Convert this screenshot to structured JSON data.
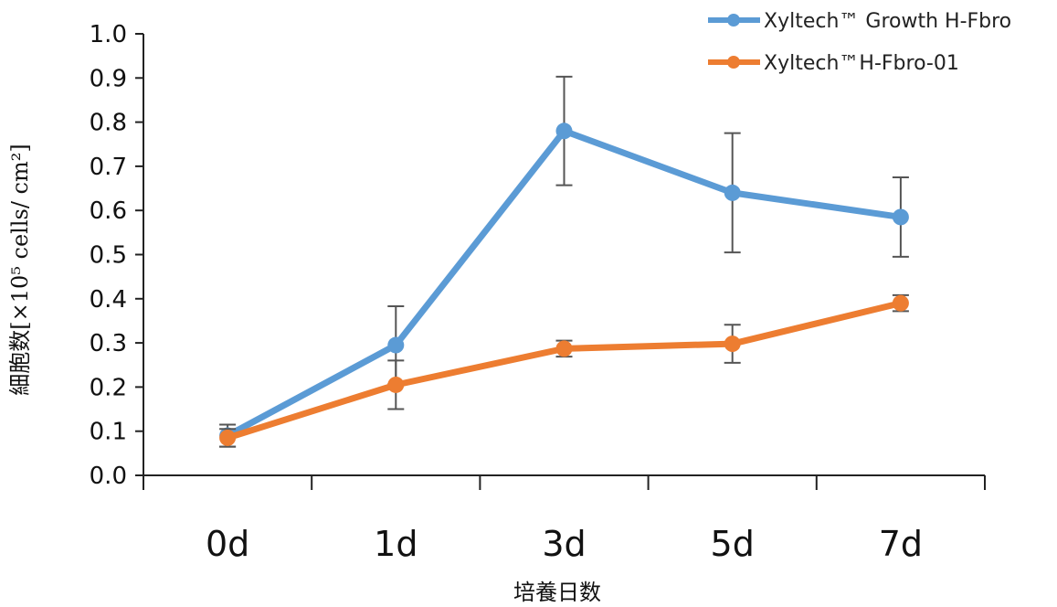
{
  "chart_data": {
    "type": "line",
    "categories": [
      "0d",
      "1d",
      "3d",
      "5d",
      "7d"
    ],
    "series": [
      {
        "name": "Xyltech™ Growth H-Fbro",
        "color": "#5b9bd5",
        "values": [
          0.09,
          0.295,
          0.78,
          0.64,
          0.585
        ],
        "errors": [
          0.025,
          0.088,
          0.123,
          0.135,
          0.09
        ]
      },
      {
        "name": "Xyltech™H-Fbro-01",
        "color": "#ed7d31",
        "values": [
          0.085,
          0.205,
          0.287,
          0.298,
          0.39
        ],
        "errors": [
          0.02,
          0.055,
          0.018,
          0.043,
          0.018
        ]
      }
    ],
    "ylim": [
      0.0,
      1.0
    ],
    "yticks": [
      "0.0",
      "0.1",
      "0.2",
      "0.3",
      "0.4",
      "0.5",
      "0.6",
      "0.7",
      "0.8",
      "0.9",
      "1.0"
    ],
    "xlabel": "培養日数",
    "ylabel": "細胞数[×10⁵ cells/ cm²]",
    "legend_position": "top-right",
    "grid": false
  }
}
